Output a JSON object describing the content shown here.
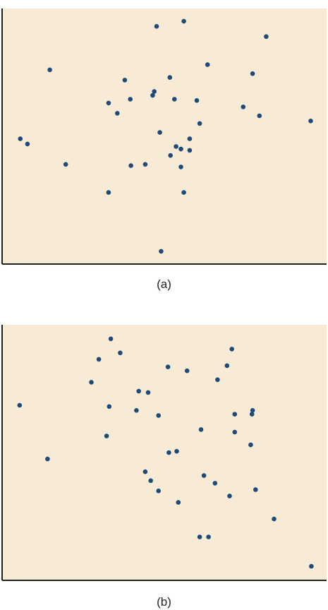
{
  "colors": {
    "plot_background": "#f8ebd6",
    "point": "#1e4a7a",
    "axis": "#222222"
  },
  "chart_data": [
    {
      "type": "scatter",
      "label": "(a)",
      "title": "",
      "xlabel": "",
      "ylabel": "",
      "xlim": [
        0,
        100
      ],
      "ylim": [
        0,
        100
      ],
      "grid": false,
      "points": [
        {
          "x": 56.0,
          "y": 95.0
        },
        {
          "x": 47.6,
          "y": 93.0
        },
        {
          "x": 81.4,
          "y": 89.0
        },
        {
          "x": 63.3,
          "y": 78.0
        },
        {
          "x": 14.7,
          "y": 76.0
        },
        {
          "x": 77.2,
          "y": 74.5
        },
        {
          "x": 51.7,
          "y": 73.0
        },
        {
          "x": 37.8,
          "y": 72.0
        },
        {
          "x": 46.9,
          "y": 67.5
        },
        {
          "x": 46.4,
          "y": 66.0
        },
        {
          "x": 39.5,
          "y": 64.5
        },
        {
          "x": 53.1,
          "y": 64.5
        },
        {
          "x": 60.0,
          "y": 64.0
        },
        {
          "x": 32.8,
          "y": 63.0
        },
        {
          "x": 74.3,
          "y": 61.5
        },
        {
          "x": 35.5,
          "y": 59.0
        },
        {
          "x": 79.3,
          "y": 58.0
        },
        {
          "x": 95.1,
          "y": 56.0
        },
        {
          "x": 60.9,
          "y": 55.0
        },
        {
          "x": 48.6,
          "y": 51.5
        },
        {
          "x": 5.6,
          "y": 49.0
        },
        {
          "x": 57.8,
          "y": 49.0
        },
        {
          "x": 7.8,
          "y": 47.0
        },
        {
          "x": 53.6,
          "y": 46.0
        },
        {
          "x": 55.1,
          "y": 45.0
        },
        {
          "x": 57.8,
          "y": 44.5
        },
        {
          "x": 51.9,
          "y": 42.5
        },
        {
          "x": 19.6,
          "y": 39.0
        },
        {
          "x": 44.1,
          "y": 39.0
        },
        {
          "x": 39.7,
          "y": 38.5
        },
        {
          "x": 55.1,
          "y": 38.0
        },
        {
          "x": 32.8,
          "y": 28.0
        },
        {
          "x": 56.0,
          "y": 28.0
        },
        {
          "x": 49.0,
          "y": 5.0
        }
      ]
    },
    {
      "type": "scatter",
      "label": "(b)",
      "title": "",
      "xlabel": "",
      "ylabel": "",
      "xlim": [
        0,
        100
      ],
      "ylim": [
        0,
        100
      ],
      "grid": false,
      "points": [
        {
          "x": 33.5,
          "y": 94.5
        },
        {
          "x": 70.8,
          "y": 90.5
        },
        {
          "x": 36.4,
          "y": 89.0
        },
        {
          "x": 29.8,
          "y": 86.5
        },
        {
          "x": 69.3,
          "y": 84.0
        },
        {
          "x": 51.1,
          "y": 83.5
        },
        {
          "x": 57.0,
          "y": 82.0
        },
        {
          "x": 66.4,
          "y": 78.5
        },
        {
          "x": 27.5,
          "y": 77.5
        },
        {
          "x": 42.1,
          "y": 74.0
        },
        {
          "x": 45.0,
          "y": 73.5
        },
        {
          "x": 5.4,
          "y": 68.5
        },
        {
          "x": 33.0,
          "y": 68.0
        },
        {
          "x": 41.4,
          "y": 66.5
        },
        {
          "x": 77.2,
          "y": 66.5
        },
        {
          "x": 77.0,
          "y": 65.0
        },
        {
          "x": 71.7,
          "y": 65.0
        },
        {
          "x": 48.2,
          "y": 64.5
        },
        {
          "x": 61.3,
          "y": 59.0
        },
        {
          "x": 71.7,
          "y": 58.0
        },
        {
          "x": 32.2,
          "y": 56.5
        },
        {
          "x": 76.6,
          "y": 53.0
        },
        {
          "x": 53.8,
          "y": 50.5
        },
        {
          "x": 51.4,
          "y": 50.0
        },
        {
          "x": 14.0,
          "y": 47.5
        },
        {
          "x": 44.1,
          "y": 42.5
        },
        {
          "x": 62.2,
          "y": 41.0
        },
        {
          "x": 45.8,
          "y": 39.0
        },
        {
          "x": 65.6,
          "y": 38.0
        },
        {
          "x": 78.1,
          "y": 35.5
        },
        {
          "x": 48.2,
          "y": 35.0
        },
        {
          "x": 70.1,
          "y": 33.0
        },
        {
          "x": 54.3,
          "y": 30.5
        },
        {
          "x": 83.8,
          "y": 24.0
        },
        {
          "x": 60.9,
          "y": 17.0
        },
        {
          "x": 63.6,
          "y": 17.0
        },
        {
          "x": 95.3,
          "y": 5.5
        }
      ]
    }
  ]
}
